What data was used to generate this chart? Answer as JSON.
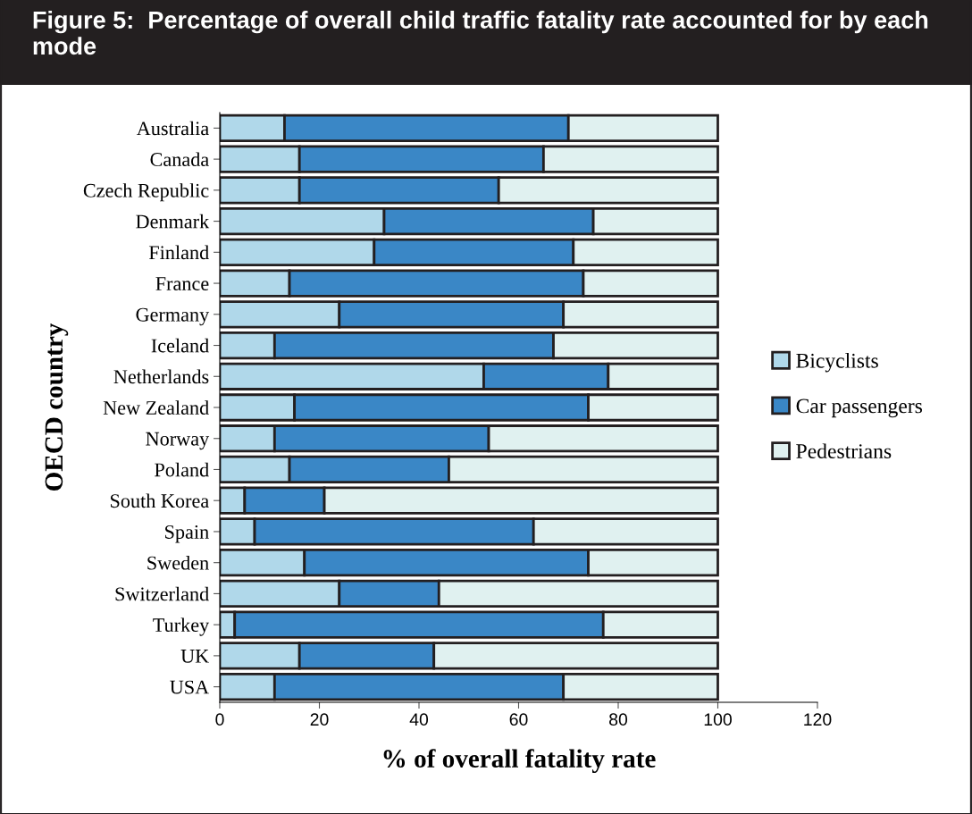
{
  "chart_data": {
    "type": "bar",
    "orientation": "horizontal",
    "stacked": true,
    "title": "Figure 5:  Percentage of overall child traffic fatality rate accounted for by each mode",
    "xlabel": "% of overall fatality rate",
    "ylabel": "OECD country",
    "categories": [
      "Australia",
      "Canada",
      "Czech Republic",
      "Denmark",
      "Finland",
      "France",
      "Germany",
      "Iceland",
      "Netherlands",
      "New Zealand",
      "Norway",
      "Poland",
      "South Korea",
      "Spain",
      "Sweden",
      "Switzerland",
      "Turkey",
      "UK",
      "USA"
    ],
    "series": [
      {
        "name": "Bicyclists",
        "color": "#b0d8ea",
        "values": [
          13,
          16,
          16,
          33,
          31,
          14,
          24,
          11,
          53,
          15,
          11,
          14,
          5,
          7,
          17,
          24,
          3,
          16,
          11
        ]
      },
      {
        "name": "Car passengers",
        "color": "#3a87c6",
        "values": [
          57,
          49,
          40,
          42,
          40,
          59,
          45,
          56,
          25,
          59,
          43,
          32,
          16,
          56,
          57,
          20,
          74,
          27,
          58
        ]
      },
      {
        "name": "Pedestrians",
        "color": "#e0f1f0",
        "values": [
          30,
          35,
          44,
          25,
          29,
          27,
          31,
          33,
          22,
          26,
          46,
          54,
          79,
          37,
          26,
          56,
          23,
          57,
          31
        ]
      }
    ],
    "xlim": [
      0,
      120
    ],
    "xticks": [
      0,
      20,
      40,
      60,
      80,
      100,
      120
    ],
    "grid": false,
    "legend": "right"
  }
}
